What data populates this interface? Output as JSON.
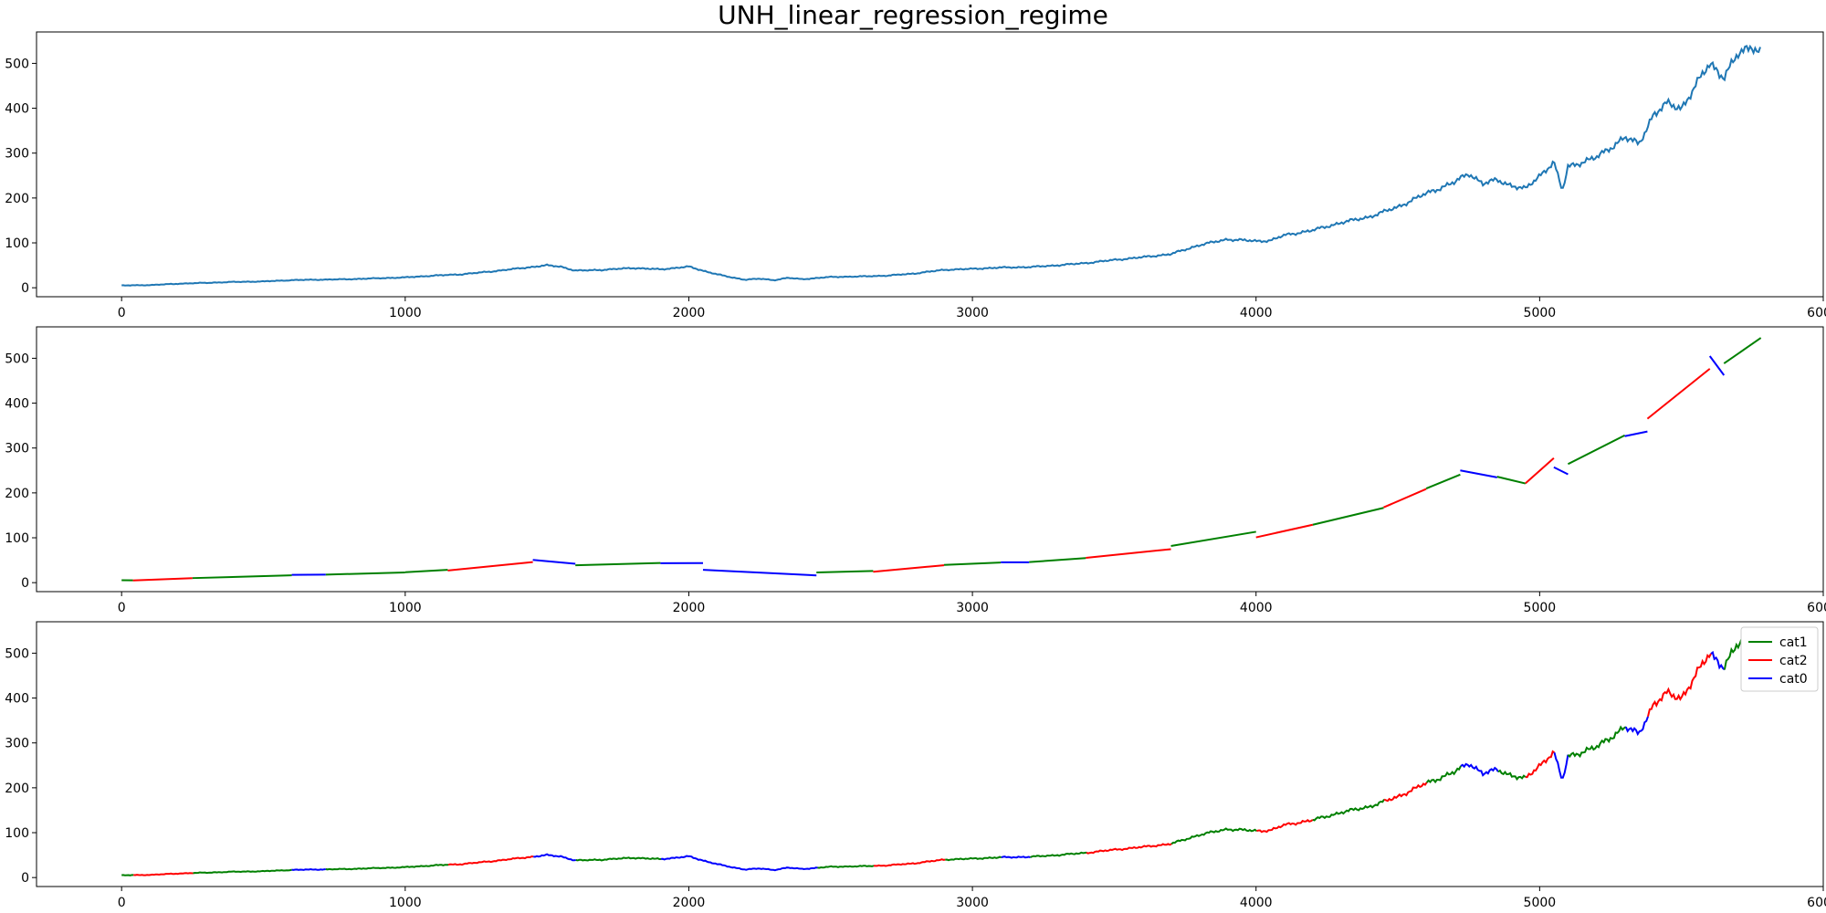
{
  "chart_data": {
    "title": "UNH_linear_regression_regime",
    "type": "line",
    "colors": {
      "price": "#1f77b4",
      "cat1": "green",
      "cat2": "red",
      "cat0": "blue"
    },
    "xlim": [
      -300,
      6000
    ],
    "ylim": [
      -20,
      570
    ],
    "x_ticks": [
      0,
      1000,
      2000,
      3000,
      4000,
      5000,
      6000
    ],
    "y_ticks": [
      0,
      100,
      200,
      300,
      400,
      500
    ],
    "legend": {
      "placement": "top-right",
      "entries": [
        "cat1",
        "cat2",
        "cat0"
      ]
    },
    "price_anchors": [
      [
        0,
        5
      ],
      [
        100,
        6
      ],
      [
        200,
        9
      ],
      [
        300,
        11
      ],
      [
        400,
        13
      ],
      [
        500,
        14
      ],
      [
        600,
        17
      ],
      [
        700,
        18
      ],
      [
        800,
        19
      ],
      [
        900,
        21
      ],
      [
        1000,
        23
      ],
      [
        1100,
        27
      ],
      [
        1200,
        30
      ],
      [
        1300,
        36
      ],
      [
        1400,
        43
      ],
      [
        1500,
        50
      ],
      [
        1550,
        47
      ],
      [
        1600,
        38
      ],
      [
        1700,
        40
      ],
      [
        1800,
        44
      ],
      [
        1900,
        41
      ],
      [
        2000,
        47
      ],
      [
        2050,
        38
      ],
      [
        2100,
        30
      ],
      [
        2150,
        23
      ],
      [
        2200,
        18
      ],
      [
        2250,
        20
      ],
      [
        2300,
        17
      ],
      [
        2350,
        22
      ],
      [
        2400,
        19
      ],
      [
        2500,
        24
      ],
      [
        2600,
        25
      ],
      [
        2700,
        27
      ],
      [
        2800,
        32
      ],
      [
        2900,
        40
      ],
      [
        3000,
        42
      ],
      [
        3100,
        45
      ],
      [
        3200,
        46
      ],
      [
        3300,
        50
      ],
      [
        3400,
        55
      ],
      [
        3500,
        62
      ],
      [
        3600,
        68
      ],
      [
        3700,
        75
      ],
      [
        3800,
        95
      ],
      [
        3900,
        108
      ],
      [
        4000,
        104
      ],
      [
        4050,
        105
      ],
      [
        4100,
        117
      ],
      [
        4200,
        128
      ],
      [
        4300,
        145
      ],
      [
        4400,
        158
      ],
      [
        4500,
        180
      ],
      [
        4600,
        210
      ],
      [
        4700,
        235
      ],
      [
        4750,
        255
      ],
      [
        4800,
        232
      ],
      [
        4850,
        240
      ],
      [
        4900,
        228
      ],
      [
        4950,
        220
      ],
      [
        5000,
        250
      ],
      [
        5050,
        280
      ],
      [
        5080,
        215
      ],
      [
        5100,
        270
      ],
      [
        5200,
        290
      ],
      [
        5300,
        335
      ],
      [
        5350,
        320
      ],
      [
        5400,
        385
      ],
      [
        5450,
        410
      ],
      [
        5500,
        400
      ],
      [
        5550,
        450
      ],
      [
        5600,
        500
      ],
      [
        5650,
        470
      ],
      [
        5700,
        520
      ],
      [
        5750,
        540
      ],
      [
        5780,
        525
      ]
    ],
    "regimes": [
      [
        0,
        40,
        "cat1"
      ],
      [
        40,
        250,
        "cat2"
      ],
      [
        250,
        600,
        "cat1"
      ],
      [
        600,
        720,
        "cat0"
      ],
      [
        720,
        1000,
        "cat1"
      ],
      [
        1000,
        1150,
        "cat1"
      ],
      [
        1150,
        1450,
        "cat2"
      ],
      [
        1450,
        1600,
        "cat0"
      ],
      [
        1600,
        1900,
        "cat1"
      ],
      [
        1900,
        2050,
        "cat0"
      ],
      [
        2050,
        2450,
        "cat0"
      ],
      [
        2450,
        2650,
        "cat1"
      ],
      [
        2650,
        2900,
        "cat2"
      ],
      [
        2900,
        3100,
        "cat1"
      ],
      [
        3100,
        3200,
        "cat0"
      ],
      [
        3200,
        3400,
        "cat1"
      ],
      [
        3400,
        3700,
        "cat2"
      ],
      [
        3700,
        4000,
        "cat1"
      ],
      [
        4000,
        4200,
        "cat2"
      ],
      [
        4200,
        4450,
        "cat1"
      ],
      [
        4450,
        4600,
        "cat2"
      ],
      [
        4600,
        4720,
        "cat1"
      ],
      [
        4720,
        4850,
        "cat0"
      ],
      [
        4850,
        4950,
        "cat1"
      ],
      [
        4950,
        5050,
        "cat2"
      ],
      [
        5050,
        5100,
        "cat0"
      ],
      [
        5100,
        5300,
        "cat1"
      ],
      [
        5300,
        5380,
        "cat0"
      ],
      [
        5380,
        5600,
        "cat2"
      ],
      [
        5600,
        5650,
        "cat0"
      ],
      [
        5650,
        5780,
        "cat1"
      ]
    ]
  }
}
